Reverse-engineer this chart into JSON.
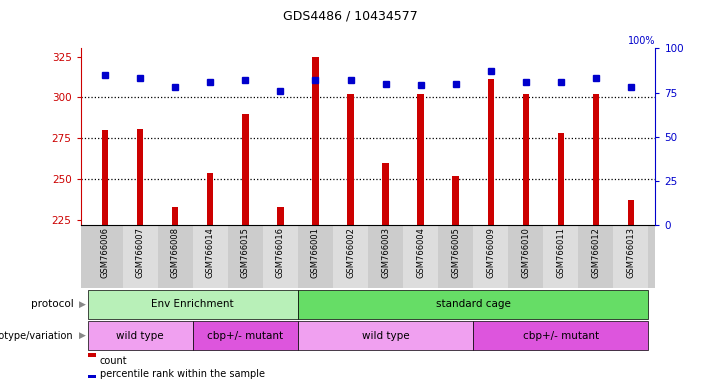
{
  "title": "GDS4486 / 10434577",
  "samples": [
    "GSM766006",
    "GSM766007",
    "GSM766008",
    "GSM766014",
    "GSM766015",
    "GSM766016",
    "GSM766001",
    "GSM766002",
    "GSM766003",
    "GSM766004",
    "GSM766005",
    "GSM766009",
    "GSM766010",
    "GSM766011",
    "GSM766012",
    "GSM766013"
  ],
  "counts": [
    280,
    281,
    233,
    254,
    290,
    233,
    325,
    302,
    260,
    302,
    252,
    311,
    302,
    278,
    302,
    237
  ],
  "percentile": [
    85,
    83,
    78,
    81,
    82,
    76,
    82,
    82,
    80,
    79,
    80,
    87,
    81,
    81,
    83,
    78
  ],
  "ylim_left": [
    222,
    330
  ],
  "ylim_right": [
    0,
    100
  ],
  "yticks_left": [
    225,
    250,
    275,
    300,
    325
  ],
  "yticks_right": [
    0,
    25,
    50,
    75,
    100
  ],
  "bar_color": "#cc0000",
  "dot_color": "#0000cc",
  "protocol_labels": [
    "Env Enrichment",
    "standard cage"
  ],
  "protocol_ranges": [
    [
      0,
      6
    ],
    [
      6,
      16
    ]
  ],
  "protocol_colors": [
    "#b8f0b8",
    "#66dd66"
  ],
  "genotype_labels": [
    "wild type",
    "cbp+/- mutant",
    "wild type",
    "cbp+/- mutant"
  ],
  "genotype_ranges": [
    [
      0,
      3
    ],
    [
      3,
      6
    ],
    [
      6,
      11
    ],
    [
      11,
      16
    ]
  ],
  "genotype_colors": [
    "#f0a0f0",
    "#dd55dd",
    "#f0a0f0",
    "#dd55dd"
  ],
  "left_axis_color": "#cc0000",
  "right_axis_color": "#0000cc",
  "legend_count_label": "count",
  "legend_pct_label": "percentile rank within the sample",
  "dotted_line_values": [
    300,
    275,
    250
  ],
  "tick_bg_color": "#cccccc",
  "tick_alt_color": "#dddddd"
}
